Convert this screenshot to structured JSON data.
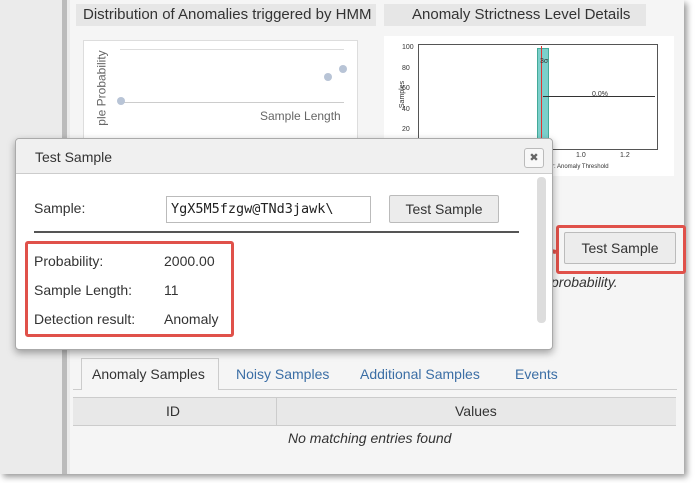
{
  "header": {
    "left_title": "Distribution of Anomalies triggered by HMM",
    "right_title": "Anomaly Strictness Level Details"
  },
  "left_chart": {
    "y_label": "ple Probability",
    "x_label": "Sample Length"
  },
  "right_chart": {
    "y_label": "Samples",
    "yticks": [
      "100",
      "80",
      "60",
      "40",
      "20"
    ],
    "xticks": [
      "1.0",
      "1.2"
    ],
    "x_label": "r: Anomaly Threshold",
    "sigma_label": "3σ",
    "percent_label": "0.0%"
  },
  "dialog": {
    "title": "Test Sample",
    "close": "✖",
    "sample_label": "Sample:",
    "sample_input": "YgX5M5fzgw@TNd3jawk\\",
    "button": "Test Sample",
    "results": [
      {
        "label": "Probability:",
        "value": "2000.00"
      },
      {
        "label": "Sample Length:",
        "value": "11"
      },
      {
        "label": "Detection result:",
        "value": "Anomaly"
      }
    ]
  },
  "page_button": "Test Sample",
  "behind_text": "probability.",
  "tabs": [
    "Anomaly Samples",
    "Noisy Samples",
    "Additional Samples",
    "Events"
  ],
  "table": {
    "columns": [
      "ID",
      "Values"
    ],
    "empty": "No matching entries found"
  }
}
